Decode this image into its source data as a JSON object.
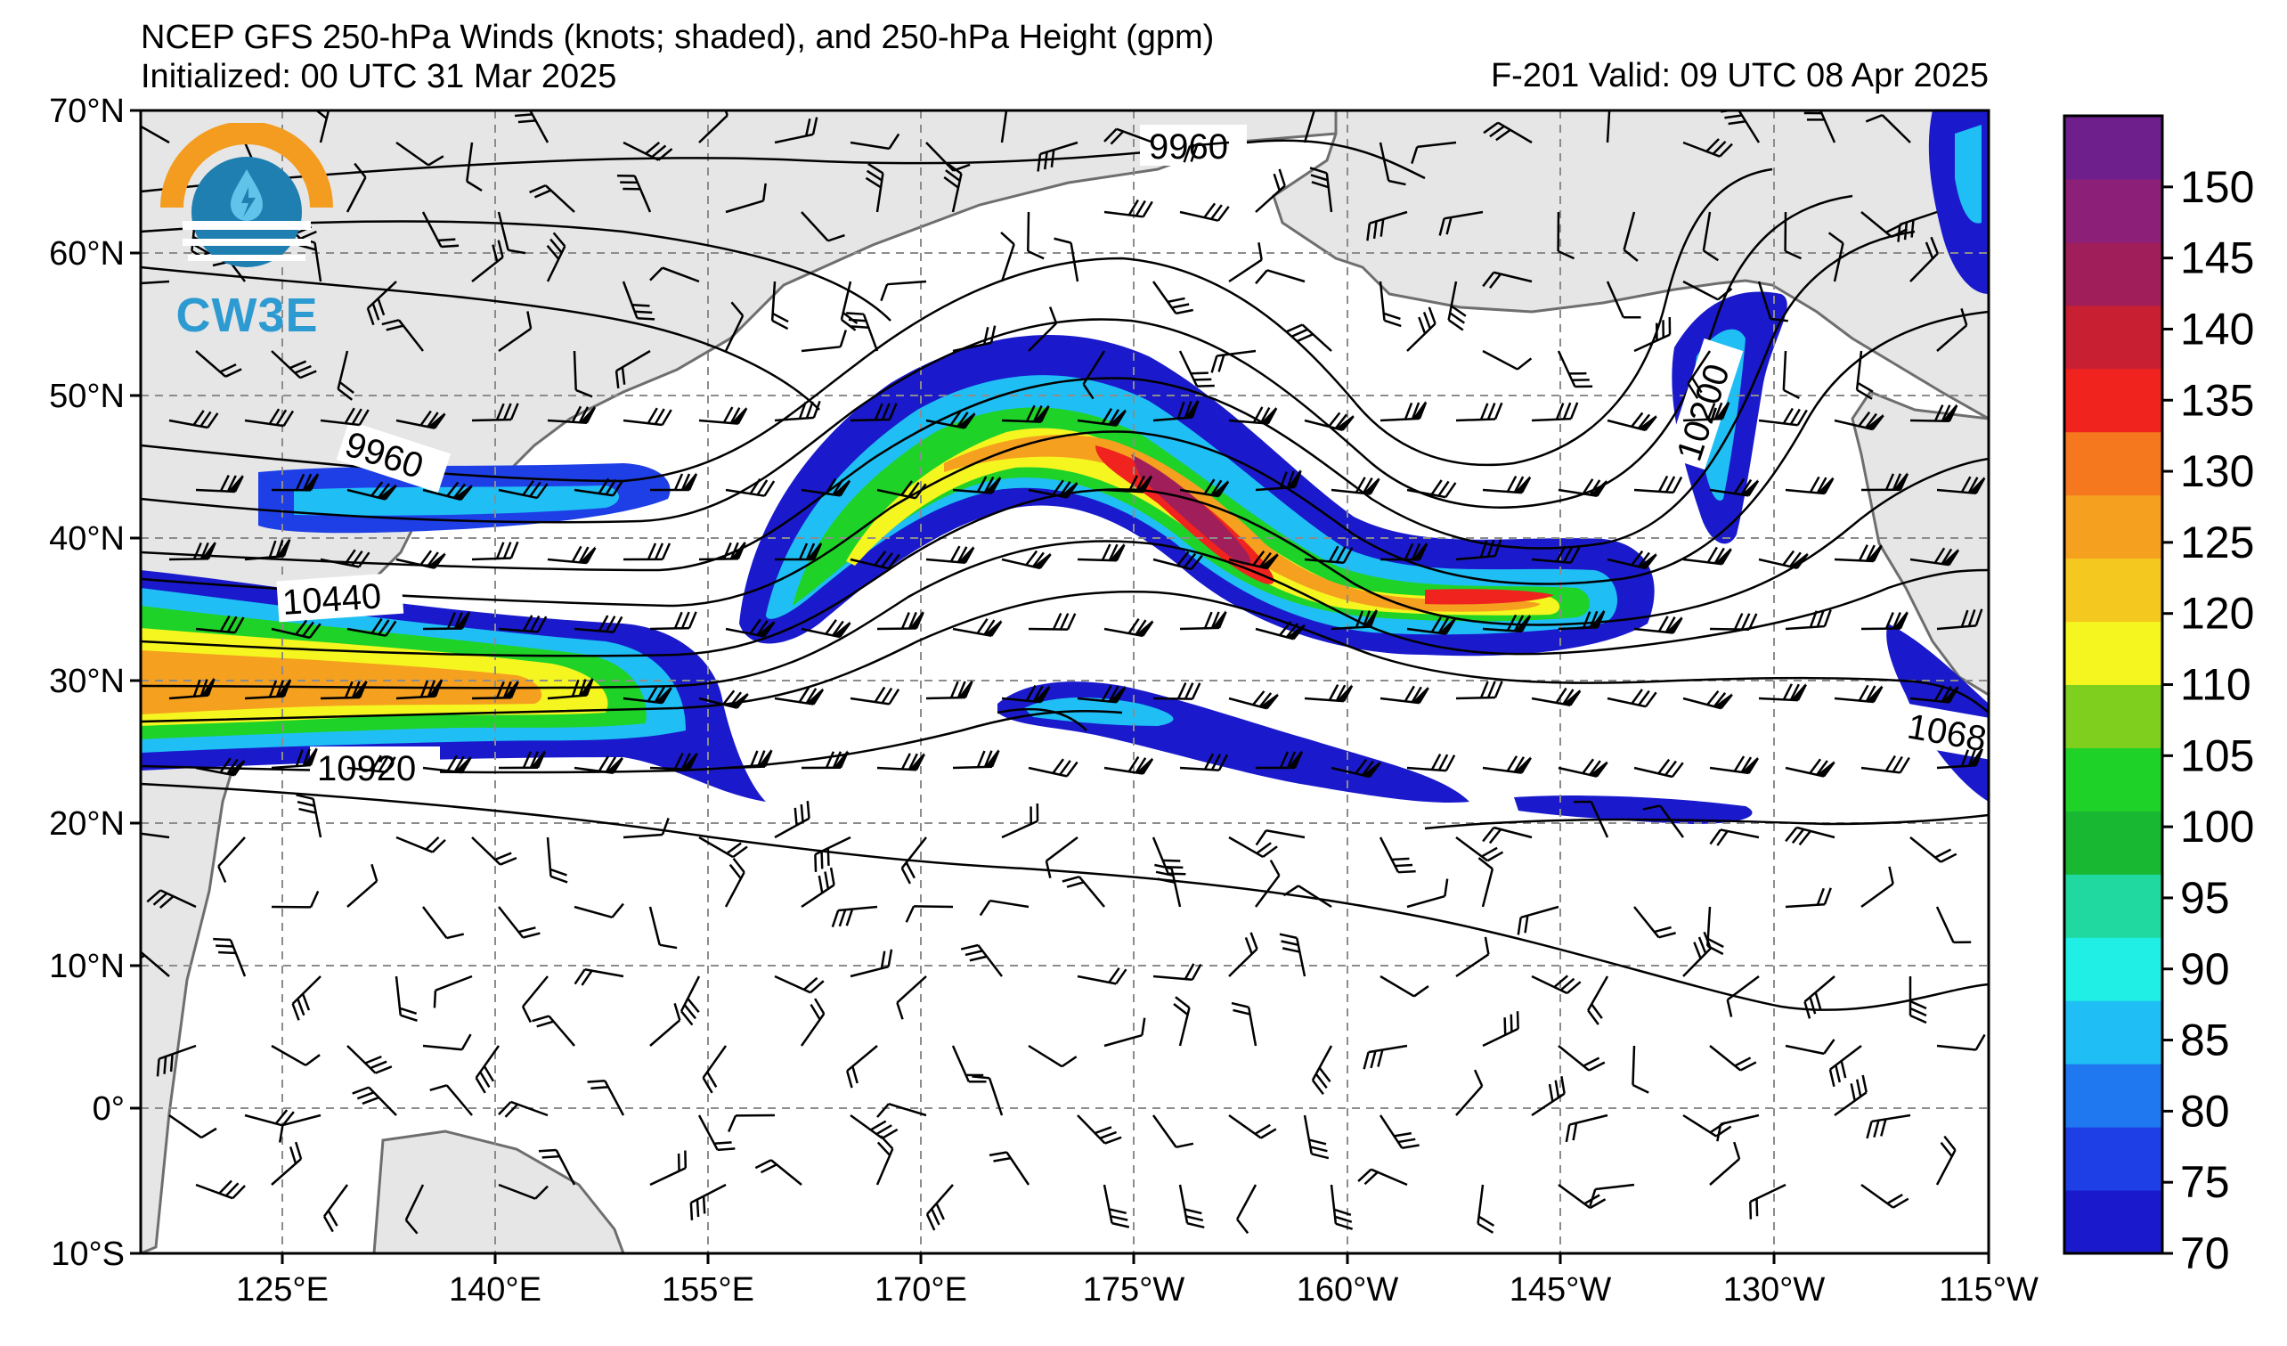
{
  "header": {
    "title": "NCEP GFS 250-hPa Winds (knots; shaded), and 250-hPa Height (gpm)",
    "initialized": "Initialized: 00 UTC 31 Mar 2025",
    "valid": "F-201  Valid: 09 UTC 08 Apr 2025"
  },
  "logo": {
    "text": "CW3E",
    "colors": {
      "sun": "#f39c1f",
      "waves": "#1e7fb0"
    }
  },
  "axes": {
    "lat_labels": [
      "70°N",
      "60°N",
      "50°N",
      "40°N",
      "30°N",
      "20°N",
      "10°N",
      "0°",
      "10°S"
    ],
    "lon_labels": [
      "125°E",
      "140°E",
      "155°E",
      "170°E",
      "175°W",
      "160°W",
      "145°W",
      "130°W",
      "115°W"
    ]
  },
  "colorbar": {
    "labels": [
      "70",
      "75",
      "80",
      "85",
      "90",
      "95",
      "100",
      "105",
      "110",
      "120",
      "125",
      "130",
      "135",
      "140",
      "145",
      "150"
    ],
    "colors": [
      "#1a1acc",
      "#1f3fe6",
      "#1f78f0",
      "#1fbff5",
      "#1fefe5",
      "#1fd9a0",
      "#19b833",
      "#1fd228",
      "#7fcf1f",
      "#f5f51f",
      "#f5c81f",
      "#f5a01f",
      "#f5781f",
      "#f0231f",
      "#c81f32",
      "#a01f5a",
      "#8c1f78",
      "#6e1f8c"
    ]
  },
  "contour_labels": [
    "9960",
    "9960",
    "10440",
    "10920",
    "10200",
    "1068"
  ],
  "colors": {
    "land": "#e6e6e6",
    "coast": "#6e6e6e",
    "grid": "#8c8c8c"
  }
}
